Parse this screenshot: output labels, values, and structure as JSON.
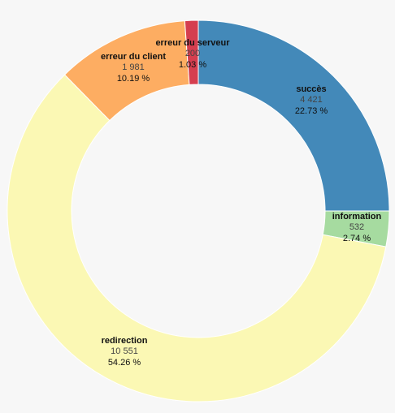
{
  "chart_data": {
    "type": "pie",
    "donut": true,
    "categories": [
      "succès",
      "information",
      "redirection",
      "erreur du client",
      "erreur du serveur"
    ],
    "values": [
      4421,
      532,
      10551,
      1981,
      200
    ],
    "value_labels": [
      "4 421",
      "532",
      "10 551",
      "1 981",
      "200"
    ],
    "percent_labels": [
      "22.73 %",
      "2.74 %",
      "54.26 %",
      "10.19 %",
      "1.03 %"
    ],
    "colors": [
      "#4389b9",
      "#a6dba0",
      "#fbf8b4",
      "#fdad62",
      "#d53e4f"
    ]
  }
}
